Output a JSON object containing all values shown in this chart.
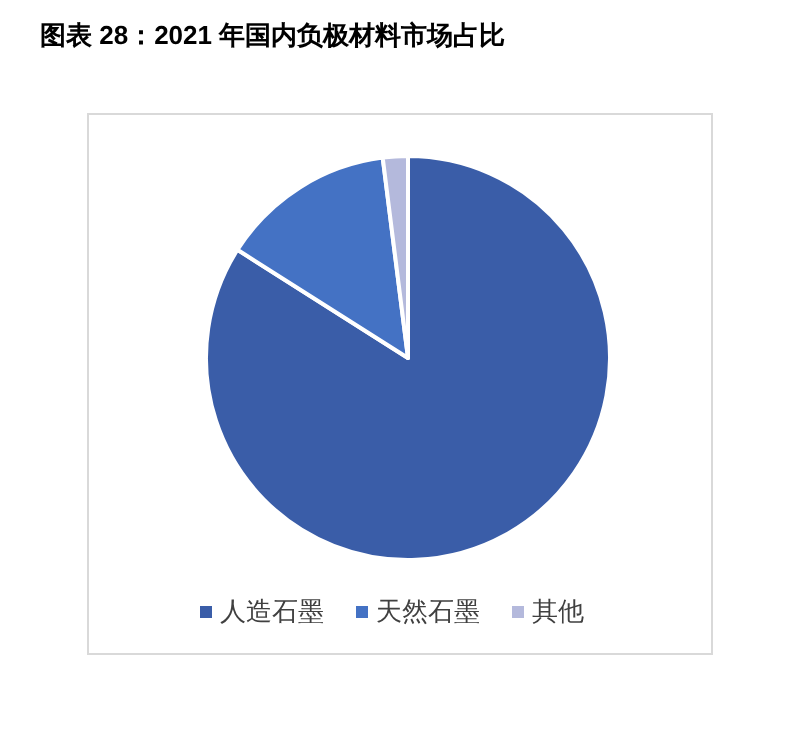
{
  "chart_data": {
    "type": "pie",
    "title": "图表 28：2021 年国内负极材料市场占比",
    "categories": [
      "人造石墨",
      "天然石墨",
      "其他"
    ],
    "values": [
      84,
      14,
      2
    ],
    "colors": [
      "#3a5da8",
      "#4472c4",
      "#b4b9dc"
    ],
    "legend": "bottom"
  }
}
